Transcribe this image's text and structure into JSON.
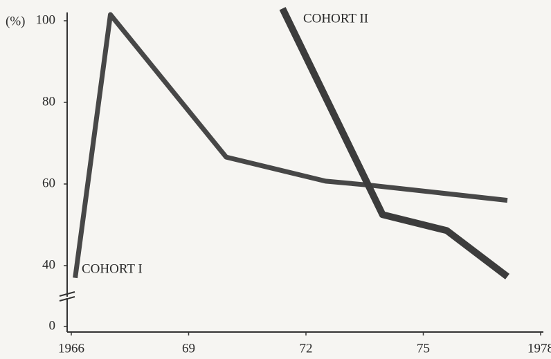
{
  "chart_data": {
    "type": "line",
    "y_label": "(%)",
    "xlim": [
      1966,
      1978
    ],
    "xticks": [
      1966,
      {
        "value": 1969,
        "label": "69"
      },
      {
        "value": 1972,
        "label": "72"
      },
      {
        "value": 1975,
        "label": "75"
      },
      1978
    ],
    "ylim": [
      0,
      100
    ],
    "yticks": [
      0,
      40,
      60,
      80,
      100
    ],
    "y_break": true,
    "series": [
      {
        "name": "COHORT I",
        "color": "#474747",
        "width": 7,
        "x": [
          1966.1,
          1967.0,
          1969.96,
          1972.5,
          1973.65,
          1977.15
        ],
        "values": [
          37,
          101.5,
          66.6,
          60.7,
          59.7,
          56
        ]
      },
      {
        "name": "COHORT II",
        "color": "#3c3c3c",
        "width": 10,
        "x": [
          1971.4,
          1973.96,
          1975.6,
          1977.15
        ],
        "values": [
          103,
          52.5,
          48.6,
          37.3
        ]
      }
    ]
  }
}
